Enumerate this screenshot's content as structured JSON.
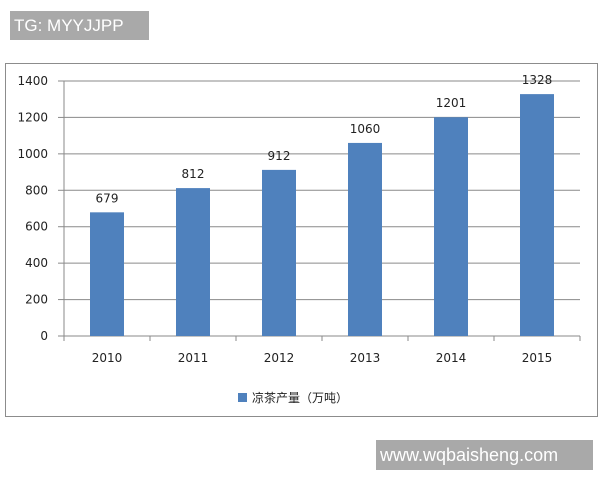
{
  "watermarks": {
    "top": "TG: MYYJJPP",
    "bottom": "www.wqbaisheng.com"
  },
  "chart_data": {
    "type": "bar",
    "categories": [
      "2010",
      "2011",
      "2012",
      "2013",
      "2014",
      "2015"
    ],
    "series": [
      {
        "name": "凉茶产量（万吨）",
        "values": [
          679,
          812,
          912,
          1060,
          1201,
          1328
        ],
        "color": "#4f81bd"
      }
    ],
    "data_labels": [
      "679",
      "812",
      "912",
      "1060",
      "1201",
      "1328"
    ],
    "yticks": [
      0,
      200,
      400,
      600,
      800,
      1000,
      1200,
      1400
    ],
    "ylim": [
      0,
      1400
    ],
    "grid": true,
    "legend": "bottom",
    "title": "",
    "xlabel": "",
    "ylabel": ""
  }
}
